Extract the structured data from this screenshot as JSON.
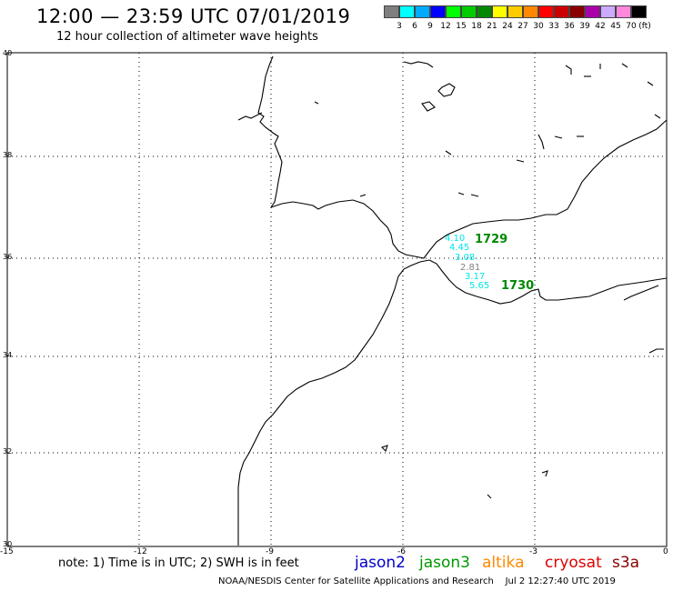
{
  "title": "12:00 — 23:59 UTC 07/01/2019",
  "subtitle": "12 hour collection of altimeter wave heights",
  "colorbar": {
    "unit_label": "(ft)",
    "bins": [
      {
        "label": "3",
        "color": "#7f7f7f"
      },
      {
        "label": "6",
        "color": "#00ffff"
      },
      {
        "label": "9",
        "color": "#00aaff"
      },
      {
        "label": "12",
        "color": "#0000ff"
      },
      {
        "label": "15",
        "color": "#00ff00"
      },
      {
        "label": "18",
        "color": "#00cc00"
      },
      {
        "label": "21",
        "color": "#008800"
      },
      {
        "label": "24",
        "color": "#ffff00"
      },
      {
        "label": "27",
        "color": "#ffcc00"
      },
      {
        "label": "30",
        "color": "#ff8800"
      },
      {
        "label": "33",
        "color": "#ff0000"
      },
      {
        "label": "36",
        "color": "#cc0000"
      },
      {
        "label": "39",
        "color": "#880000"
      },
      {
        "label": "42",
        "color": "#aa00aa"
      },
      {
        "label": "45",
        "color": "#ccaaff"
      },
      {
        "label": "70",
        "color": "#ff88dd"
      },
      {
        "label": "",
        "color": "#000000"
      }
    ]
  },
  "map": {
    "lat_labels": [
      "40",
      "38",
      "36",
      "34",
      "32",
      "30"
    ],
    "lon_labels": [
      "-15",
      "-12",
      "-9",
      "-6",
      "-3",
      "0"
    ]
  },
  "observations": [
    {
      "value": "4.10",
      "color": "#00e5e5"
    },
    {
      "value": "4.45",
      "color": "#00e5e5"
    },
    {
      "value": "3.08",
      "color": "#00e5e5"
    },
    {
      "value": "2.81",
      "color": "#808080"
    },
    {
      "value": "3.17",
      "color": "#00e5e5"
    },
    {
      "value": "5.65",
      "color": "#00e5e5"
    }
  ],
  "passes": [
    {
      "time": "1729",
      "color": "#008800"
    },
    {
      "time": "1730",
      "color": "#008800"
    }
  ],
  "footer": {
    "note": "note: 1) Time is in UTC; 2) SWH is in feet",
    "satellites": [
      {
        "name": "jason2",
        "color": "#0000cc"
      },
      {
        "name": "jason3",
        "color": "#009900"
      },
      {
        "name": "altika",
        "color": "#ff8800"
      },
      {
        "name": "cryosat",
        "color": "#dd0000"
      },
      {
        "name": "s3a",
        "color": "#880000"
      }
    ],
    "credit": "NOAA/NESDIS Center for Satellite Applications and Research",
    "timestamp": "Jul  2 12:27:40 UTC 2019"
  }
}
